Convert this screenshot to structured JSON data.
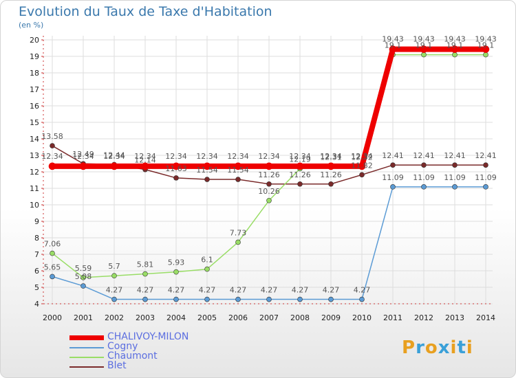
{
  "chart_data": {
    "type": "line",
    "title": "Evolution du Taux de Taxe d'Habitation",
    "unit_label": "(en %)",
    "xlabel": "",
    "ylabel": "",
    "ylim": [
      4,
      20
    ],
    "yticks": [
      4,
      5,
      6,
      7,
      8,
      9,
      10,
      11,
      12,
      13,
      14,
      15,
      16,
      17,
      18,
      19,
      20
    ],
    "categories": [
      "2000",
      "2001",
      "2002",
      "2003",
      "2004",
      "2005",
      "2006",
      "2007",
      "2008",
      "2009",
      "2010",
      "2011",
      "2012",
      "2013",
      "2014"
    ],
    "series": [
      {
        "name": "CHALIVOY-MILON",
        "color": "#ee0000",
        "values": [
          12.34,
          12.34,
          12.34,
          12.34,
          12.34,
          12.34,
          12.34,
          12.34,
          12.34,
          12.34,
          12.34,
          19.43,
          19.43,
          19.43,
          19.43
        ]
      },
      {
        "name": "Cogny",
        "color": "#5b9bd5",
        "values": [
          5.65,
          5.08,
          4.27,
          4.27,
          4.27,
          4.27,
          4.27,
          4.27,
          4.27,
          4.27,
          4.27,
          11.09,
          11.09,
          11.09,
          11.09
        ]
      },
      {
        "name": "Chaumont",
        "color": "#99dd66",
        "values": [
          7.06,
          5.59,
          5.7,
          5.81,
          5.93,
          6.1,
          7.73,
          10.26,
          12.19,
          12.31,
          12.32,
          19.1,
          19.1,
          19.1,
          19.1
        ]
      },
      {
        "name": "Blet",
        "color": "#7a2a2a",
        "values": [
          13.58,
          12.49,
          12.44,
          12.14,
          11.63,
          11.54,
          11.54,
          11.26,
          11.26,
          11.26,
          11.82,
          12.41,
          12.41,
          12.41,
          12.41
        ]
      }
    ],
    "labels": {
      "CHALIVOY-MILON": [
        "12.34",
        "12.34",
        "12.34",
        "12.34",
        "12.34",
        "12.34",
        "12.34",
        "12.34",
        "12.34",
        "12.34",
        "12.34",
        "19.43",
        "19.43",
        "19.43",
        "19.43"
      ],
      "Cogny": [
        "5.65",
        "5.08",
        "4.27",
        "4.27",
        "4.27",
        "4.27",
        "4.27",
        "4.27",
        "4.27",
        "4.27",
        "4.27",
        "11.09",
        "11.09",
        "11.09",
        "11.09"
      ],
      "Chaumont": [
        "7.06",
        "5.59",
        "5.7",
        "5.81",
        "5.93",
        "6.1",
        "7.73",
        "10.26",
        "12.19",
        "12.31",
        "12.32",
        "19.1",
        "19.1",
        "19.1",
        "19.1"
      ],
      "Blet": [
        "13.58",
        "12.49",
        "12.44",
        "12.14",
        "11.63",
        "11.54",
        "11.54",
        "11.26",
        "11.26",
        "11.26",
        "11.82",
        "12.41",
        "12.41",
        "12.41",
        "12.41"
      ]
    },
    "legend_position": "bottom-left"
  },
  "legend": {
    "items": [
      {
        "label": "CHALIVOY-MILON",
        "color": "#ee0000"
      },
      {
        "label": "Cogny",
        "color": "#5b9bd5"
      },
      {
        "label": "Chaumont",
        "color": "#99dd66"
      },
      {
        "label": "Blet",
        "color": "#7a2a2a"
      }
    ]
  },
  "logo": {
    "letters": [
      "P",
      "r",
      "o",
      "x",
      "i",
      "t",
      "i"
    ],
    "colors": [
      "#e8a020",
      "#3aa0d8",
      "#e8a020",
      "#3aa0d8",
      "#e8a020",
      "#3aa0d8",
      "#e8a020"
    ]
  }
}
